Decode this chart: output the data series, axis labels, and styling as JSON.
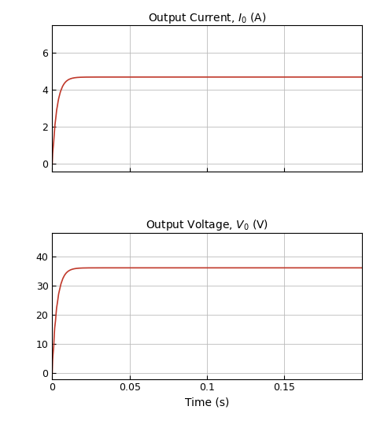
{
  "title1": "Output Current, $I_0$ (A)",
  "title2": "Output Voltage, $V_0$ (V)",
  "xlabel": "Time (s)",
  "current_ylim": [
    -0.4,
    7.5
  ],
  "current_yticks": [
    0,
    2,
    4,
    6
  ],
  "voltage_ylim": [
    -2,
    48
  ],
  "voltage_yticks": [
    0,
    10,
    20,
    30,
    40
  ],
  "xlim": [
    0,
    0.2
  ],
  "xticks": [
    0,
    0.05,
    0.1,
    0.15
  ],
  "xtick_labels": [
    "0",
    "0.05",
    "0.1",
    "0.15"
  ],
  "current_steady": 4.7,
  "voltage_steady": 36.0,
  "line_color": "#c0392b",
  "line_width": 1.2,
  "grid_color": "#bbbbbb",
  "bg_color": "#ffffff",
  "title_fontsize": 10,
  "label_fontsize": 10,
  "tick_fontsize": 9,
  "rise_tau": 0.003,
  "oscillation_freq": 800,
  "oscillation_decay": 600,
  "current_osc_amp": 0.15,
  "voltage_osc_amp": 1.5
}
